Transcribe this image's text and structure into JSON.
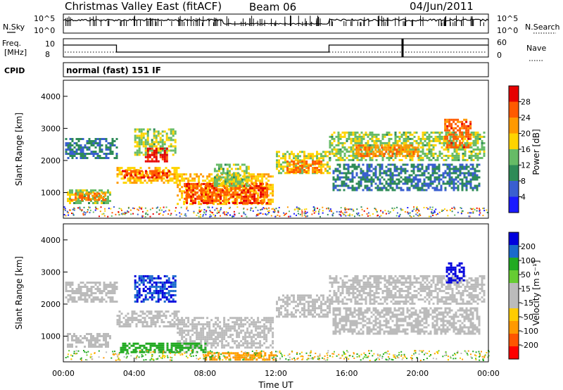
{
  "header": {
    "title": "Christmas Valley East (fitACF)",
    "beam": "Beam 06",
    "date": "04/Jun/2011"
  },
  "strips": {
    "nsky_label": "N.Sky",
    "nsearch_label": "N.Search",
    "noise_ticks": [
      "10^5",
      "10^0"
    ],
    "freq_label_line1": "Freq.",
    "freq_label_line2": "[MHz]",
    "freq_ticks": [
      "10",
      "8"
    ],
    "nave_label": "Nave",
    "nave_ticks": [
      "60",
      "0"
    ],
    "cpid_label": "CPID",
    "cpid_text": "normal (fast) 151 IF"
  },
  "colors": {
    "power": [
      "#1a1aff",
      "#3a5fd0",
      "#2e8b57",
      "#66bb66",
      "#ffd400",
      "#ff9900",
      "#ff5a00",
      "#e60000"
    ],
    "velocity": [
      "#ff0000",
      "#ff5500",
      "#ff9900",
      "#ffcc00",
      "#bbbbbb",
      "#bbbbbb",
      "#66cc33",
      "#22aa22",
      "#1a6acc",
      "#0000dd"
    ]
  },
  "chart_data": [
    {
      "type": "heatmap",
      "panel": "power",
      "ylabel": "Slant Range [km]",
      "ylim": [
        200,
        4500
      ],
      "yticks": [
        "1000",
        "2000",
        "3000",
        "4000"
      ],
      "xlim_hours": [
        0,
        24
      ],
      "colorbar_label": "Power [dB]",
      "colorbar_ticks": [
        "4",
        "8",
        "12",
        "16",
        "20",
        "24",
        "28"
      ],
      "colorbar_range": [
        0,
        30
      ],
      "bands": [
        {
          "t0": 0.2,
          "t1": 2.6,
          "r0": 700,
          "r1": 1100,
          "value": 14
        },
        {
          "t0": 0.4,
          "t1": 2.4,
          "r0": 800,
          "r1": 1000,
          "value": 22
        },
        {
          "t0": 0.1,
          "t1": 3.0,
          "r0": 2100,
          "r1": 2700,
          "value": 8
        },
        {
          "t0": 3.0,
          "t1": 6.5,
          "r0": 1300,
          "r1": 1800,
          "value": 18
        },
        {
          "t0": 3.3,
          "t1": 6.0,
          "r0": 1450,
          "r1": 1700,
          "value": 25
        },
        {
          "t0": 4.0,
          "t1": 6.3,
          "r0": 2200,
          "r1": 3000,
          "value": 14
        },
        {
          "t0": 4.6,
          "t1": 5.8,
          "r0": 2000,
          "r1": 2400,
          "value": 27
        },
        {
          "t0": 6.4,
          "t1": 11.8,
          "r0": 650,
          "r1": 1600,
          "value": 18
        },
        {
          "t0": 6.8,
          "t1": 11.5,
          "r0": 700,
          "r1": 1300,
          "value": 25
        },
        {
          "t0": 8.5,
          "t1": 10.5,
          "r0": 1200,
          "r1": 1900,
          "value": 14
        },
        {
          "t0": 12.0,
          "t1": 15.0,
          "r0": 1600,
          "r1": 2300,
          "value": 16
        },
        {
          "t0": 12.6,
          "t1": 14.6,
          "r0": 1650,
          "r1": 2000,
          "value": 23
        },
        {
          "t0": 15.0,
          "t1": 23.8,
          "r0": 2000,
          "r1": 2900,
          "value": 14
        },
        {
          "t0": 16.5,
          "t1": 20.0,
          "r0": 2150,
          "r1": 2500,
          "value": 22
        },
        {
          "t0": 21.5,
          "t1": 23.0,
          "r0": 2400,
          "r1": 3300,
          "value": 24
        },
        {
          "t0": 15.2,
          "t1": 23.5,
          "r0": 1100,
          "r1": 1900,
          "value": 8
        }
      ]
    },
    {
      "type": "heatmap",
      "panel": "velocity",
      "ylabel": "Slant Range [km]",
      "xlabel": "Time UT",
      "ylim": [
        200,
        4500
      ],
      "yticks": [
        "1000",
        "2000",
        "3000",
        "4000"
      ],
      "xlim_hours": [
        0,
        24
      ],
      "xticks": [
        "00:00",
        "04:00",
        "08:00",
        "12:00",
        "16:00",
        "20:00",
        "00:00"
      ],
      "colorbar_label": "Velocity [m s⁻¹]",
      "colorbar_ticks": [
        "-200",
        "-100",
        "-50",
        "-15",
        "15",
        "50",
        "100",
        "200"
      ],
      "bands": [
        {
          "t0": 0.2,
          "t1": 2.6,
          "r0": 700,
          "r1": 1100,
          "value": 0
        },
        {
          "t0": 0.1,
          "t1": 3.0,
          "r0": 2100,
          "r1": 2700,
          "value": 0
        },
        {
          "t0": 3.0,
          "t1": 6.5,
          "r0": 1300,
          "r1": 1800,
          "value": 0
        },
        {
          "t0": 4.0,
          "t1": 6.3,
          "r0": 2100,
          "r1": 2900,
          "value": 200
        },
        {
          "t0": 6.4,
          "t1": 11.8,
          "r0": 650,
          "r1": 1600,
          "value": 0
        },
        {
          "t0": 3.2,
          "t1": 8.0,
          "r0": 500,
          "r1": 800,
          "value": 60
        },
        {
          "t0": 12.0,
          "t1": 15.0,
          "r0": 1600,
          "r1": 2300,
          "value": 0
        },
        {
          "t0": 15.0,
          "t1": 23.8,
          "r0": 2000,
          "r1": 2900,
          "value": 0
        },
        {
          "t0": 21.6,
          "t1": 22.6,
          "r0": 2700,
          "r1": 3300,
          "value": 210
        },
        {
          "t0": 15.2,
          "t1": 23.5,
          "r0": 1100,
          "r1": 1900,
          "value": 0
        },
        {
          "t0": 8.0,
          "t1": 12.0,
          "r0": 250,
          "r1": 500,
          "value": -80
        }
      ]
    }
  ]
}
